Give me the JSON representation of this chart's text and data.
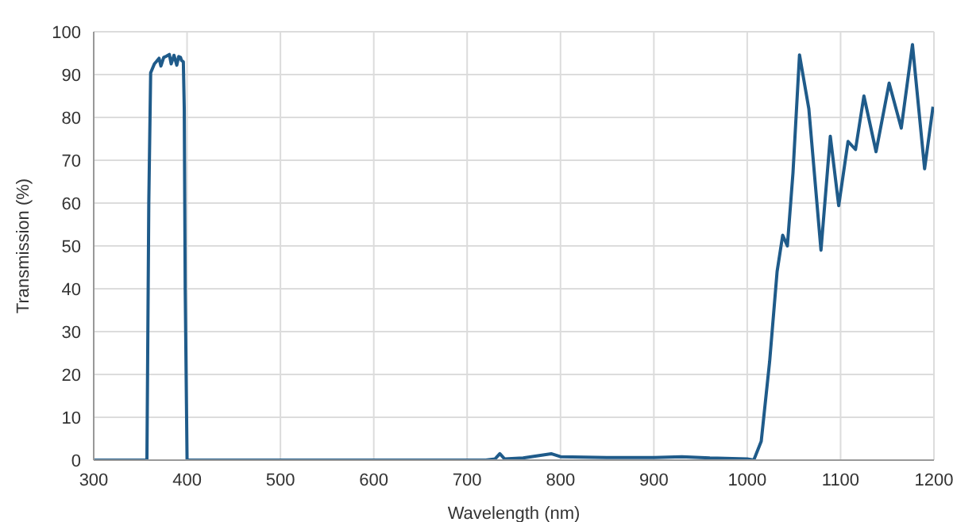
{
  "chart_data": {
    "type": "line",
    "xlabel": "Wavelength (nm)",
    "ylabel": "Transmission (%)",
    "x": [
      300,
      355,
      357,
      359,
      361,
      365,
      367,
      370,
      372,
      375,
      378,
      381,
      383,
      386,
      389,
      391,
      393,
      394,
      396,
      397,
      398,
      400,
      450,
      600,
      720,
      730,
      735,
      740,
      760,
      790,
      800,
      850,
      900,
      930,
      960,
      1000,
      1007,
      1015,
      1024,
      1032,
      1038,
      1043,
      1049,
      1056,
      1066,
      1079,
      1089,
      1098,
      1108,
      1116,
      1125,
      1138,
      1152,
      1165,
      1177,
      1190,
      1199
    ],
    "series": [
      {
        "color": "#1f5b8a",
        "values": [
          0,
          0,
          0,
          60,
          90.4,
          92.5,
          93,
          93.8,
          92,
          94,
          94.3,
          94.7,
          92.5,
          94.5,
          92.2,
          94.2,
          94,
          93.3,
          93,
          82,
          40,
          0,
          0,
          0,
          0,
          0.3,
          1.5,
          0.3,
          0.5,
          1.5,
          0.8,
          0.6,
          0.6,
          0.8,
          0.5,
          0.3,
          0,
          4.4,
          23,
          44,
          52.5,
          50,
          67,
          94.6,
          82,
          49,
          75.6,
          59.4,
          74.4,
          72.5,
          85,
          72,
          88,
          77.5,
          97,
          68,
          82.5
        ]
      }
    ],
    "xlim": [
      300,
      1200
    ],
    "xticks": [
      300,
      400,
      500,
      600,
      700,
      800,
      900,
      1000,
      1100,
      1200
    ],
    "ylim": [
      0,
      100
    ],
    "yticks": [
      0,
      10,
      20,
      30,
      40,
      50,
      60,
      70,
      80,
      90,
      100
    ],
    "grid": true
  }
}
